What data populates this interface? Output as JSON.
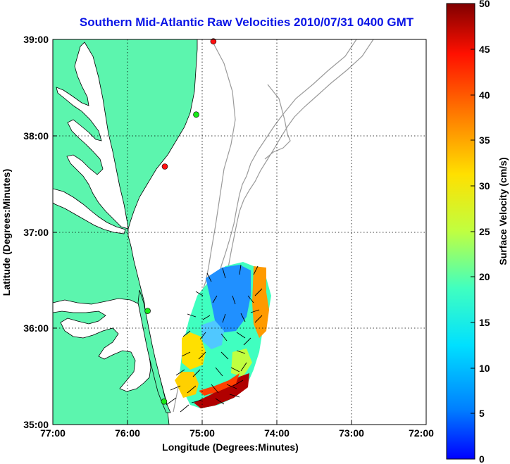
{
  "title": "Southern Mid-Atlantic Raw Velocities 2010/07/31 0400 GMT",
  "x_axis": {
    "label": "Longitude (Degrees:Minutes)",
    "ticks": [
      "77:00",
      "76:00",
      "75:00",
      "74:00",
      "73:00",
      "72:00"
    ],
    "range_deg_west": [
      77,
      72
    ]
  },
  "y_axis": {
    "label": "Latitude (Degrees:Minutes)",
    "ticks": [
      "39:00",
      "38:00",
      "37:00",
      "36:00",
      "35:00"
    ],
    "range_deg_north": [
      35,
      39
    ]
  },
  "colorbar": {
    "label": "Surface Velocity (cm/s)",
    "ticks": [
      "50",
      "45",
      "40",
      "35",
      "30",
      "25",
      "20",
      "15",
      "10",
      "5",
      "0"
    ],
    "range": [
      0,
      50
    ],
    "colormap": "jet"
  },
  "grid": true,
  "colors": {
    "land": "#5cf5ae",
    "ocean": "#ffffff",
    "title": "#0a14e6",
    "bathymetry": "#9a9a9a",
    "station_active": "#18e818",
    "station_inactive": "#ff1010"
  },
  "stations": [
    {
      "lon": 74.85,
      "lat": 38.98,
      "status": "inactive"
    },
    {
      "lon": 75.08,
      "lat": 38.22,
      "status": "active"
    },
    {
      "lon": 75.5,
      "lat": 37.68,
      "status": "inactive"
    },
    {
      "lon": 75.73,
      "lat": 36.18,
      "status": "active"
    },
    {
      "lon": 75.51,
      "lat": 35.24,
      "status": "active"
    }
  ]
}
